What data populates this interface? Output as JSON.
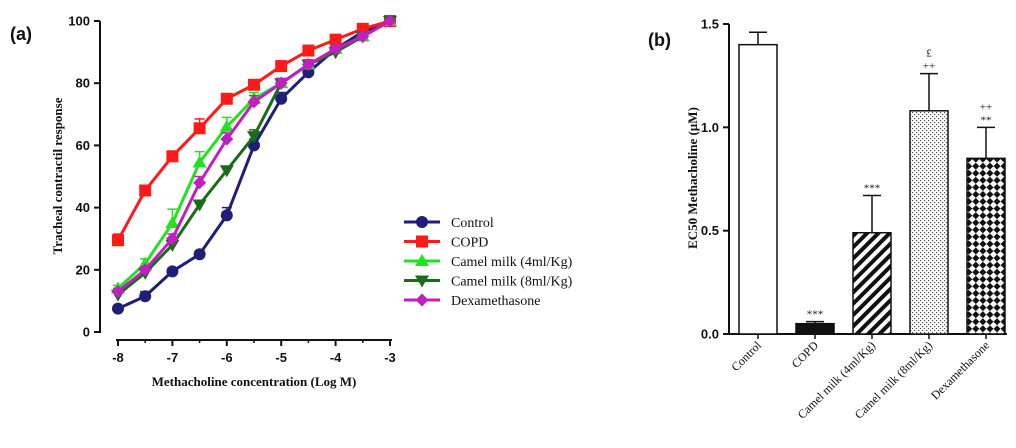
{
  "chart_data": [
    {
      "panel_label": "(a)",
      "type": "line",
      "xlabel": "Methacholine concentration (Log M)",
      "ylabel": "Tracheal contractil response",
      "xlim": [
        -8,
        -3
      ],
      "ylim": [
        0,
        100
      ],
      "xticks": [
        -8,
        -7,
        -6,
        -5,
        -4,
        -3
      ],
      "yticks": [
        0,
        20,
        40,
        60,
        80,
        100
      ],
      "x": [
        -8,
        -7.5,
        -7,
        -6.5,
        -6,
        -5.5,
        -5,
        -4.5,
        -4,
        -3.5,
        -3
      ],
      "legend_position": "right",
      "series": [
        {
          "name": "Control",
          "color": "#1f1f7a",
          "marker": "circle",
          "values": [
            7.5,
            11.5,
            19.5,
            25,
            37.5,
            60,
            75,
            83.5,
            91,
            96.5,
            100
          ],
          "errors": [
            0,
            1.5,
            1,
            1,
            2.5,
            2,
            2,
            2,
            1.5,
            1,
            0.5
          ]
        },
        {
          "name": "COPD",
          "color": "#ff1a1a",
          "marker": "square",
          "values": [
            29.5,
            45.5,
            56.5,
            65.5,
            75,
            79.5,
            85.5,
            90.5,
            94,
            97.5,
            100
          ],
          "errors": [
            2,
            1,
            1.5,
            3,
            1.5,
            1.5,
            1,
            1,
            0.8,
            0.8,
            0.5
          ]
        },
        {
          "name": "Camel milk (4ml/Kg)",
          "color": "#22e022",
          "marker": "triangle-up",
          "values": [
            14,
            22,
            35,
            54.5,
            66,
            75,
            80,
            86,
            91,
            95,
            100
          ],
          "errors": [
            1,
            1.5,
            4.5,
            3.5,
            3,
            2,
            1.5,
            1.5,
            1,
            1,
            0.5
          ]
        },
        {
          "name": "Camel milk (8ml/Kg)",
          "color": "#1b6b1b",
          "marker": "triangle-down",
          "values": [
            12,
            19,
            28,
            41,
            52,
            63,
            80,
            86,
            90,
            95,
            100
          ],
          "errors": [
            1,
            1,
            1,
            1,
            1,
            2,
            1.5,
            1.5,
            1,
            1,
            0.5
          ]
        },
        {
          "name": "Dexamethasone",
          "color": "#c020c0",
          "marker": "diamond",
          "values": [
            13,
            20,
            30,
            48,
            62,
            74,
            80,
            86,
            91,
            95,
            100
          ],
          "errors": [
            1,
            1,
            1.5,
            2,
            2,
            2,
            1.5,
            1.5,
            1,
            1,
            0.5
          ]
        }
      ]
    },
    {
      "panel_label": "(b)",
      "type": "bar",
      "xlabel": "",
      "ylabel": "EC50 Methacholine (µM)",
      "ylim": [
        0,
        1.5
      ],
      "yticks": [
        "0.0",
        "0.5",
        "1.0",
        "1.5"
      ],
      "categories": [
        "Control",
        "COPD",
        "Camel milk (4ml/Kg)",
        "Camel milk (8ml/Kg)",
        "Dexamethasone"
      ],
      "values": [
        1.4,
        0.05,
        0.49,
        1.08,
        0.85
      ],
      "errors": [
        0.06,
        0.01,
        0.18,
        0.18,
        0.15
      ],
      "patterns": [
        "none",
        "solid",
        "diagonal",
        "dots",
        "checker"
      ],
      "annotations": [
        [],
        [
          "***"
        ],
        [
          "***"
        ],
        [
          "++",
          "£"
        ],
        [
          "**",
          "++"
        ]
      ]
    }
  ]
}
